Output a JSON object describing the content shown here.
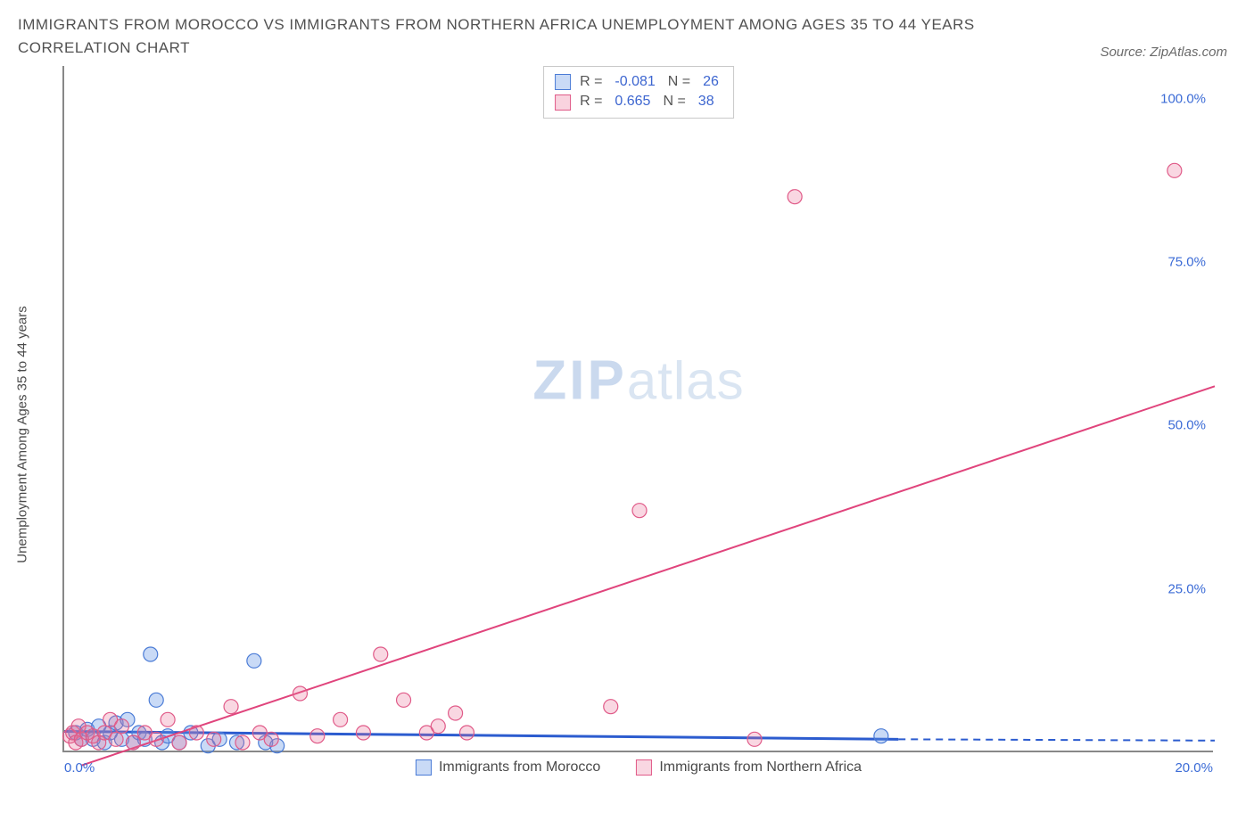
{
  "title_line1": "IMMIGRANTS FROM MOROCCO VS IMMIGRANTS FROM NORTHERN AFRICA UNEMPLOYMENT AMONG AGES 35 TO 44 YEARS",
  "title_line2": "CORRELATION CHART",
  "source": "Source: ZipAtlas.com",
  "ylabel": "Unemployment Among Ages 35 to 44 years",
  "watermark_zip": "ZIP",
  "watermark_atlas": "atlas",
  "chart": {
    "type": "scatter",
    "xlim": [
      0,
      20
    ],
    "ylim": [
      0,
      105
    ],
    "yticks": [
      {
        "v": 25,
        "label": "25.0%"
      },
      {
        "v": 50,
        "label": "50.0%"
      },
      {
        "v": 75,
        "label": "75.0%"
      },
      {
        "v": 100,
        "label": "100.0%"
      }
    ],
    "xticks": [
      {
        "v": 0,
        "label": "0.0%",
        "cls": "left"
      },
      {
        "v": 20,
        "label": "20.0%",
        "cls": "right"
      }
    ],
    "series": [
      {
        "name": "Immigrants from Morocco",
        "color_fill": "rgba(100,150,230,0.35)",
        "color_stroke": "#4a7bd6",
        "marker_radius": 8,
        "R": "-0.081",
        "N": "26",
        "trend": {
          "x1": 0,
          "y1": 3.2,
          "x2": 14.5,
          "y2": 2.0,
          "dashed_after_x": 14.5,
          "dash_to_x": 20,
          "dash_y": 1.8,
          "color": "#2c5ccf",
          "width": 3
        },
        "points": [
          [
            0.2,
            3
          ],
          [
            0.3,
            2
          ],
          [
            0.4,
            3.5
          ],
          [
            0.5,
            2
          ],
          [
            0.6,
            4
          ],
          [
            0.7,
            1.5
          ],
          [
            0.8,
            3
          ],
          [
            0.9,
            4.5
          ],
          [
            1.0,
            2
          ],
          [
            1.1,
            5
          ],
          [
            1.2,
            1.5
          ],
          [
            1.3,
            3
          ],
          [
            1.4,
            2
          ],
          [
            1.5,
            15
          ],
          [
            1.6,
            8
          ],
          [
            1.7,
            1.5
          ],
          [
            1.8,
            2.5
          ],
          [
            2.0,
            1.5
          ],
          [
            2.2,
            3
          ],
          [
            2.5,
            1
          ],
          [
            2.7,
            2
          ],
          [
            3.0,
            1.5
          ],
          [
            3.3,
            14
          ],
          [
            3.5,
            1.5
          ],
          [
            3.7,
            1
          ],
          [
            14.2,
            2.5
          ]
        ]
      },
      {
        "name": "Immigrants from Northern Africa",
        "color_fill": "rgba(235,110,150,0.28)",
        "color_stroke": "#e05a88",
        "marker_radius": 8,
        "R": "0.665",
        "N": "38",
        "trend": {
          "x1": 0.3,
          "y1": -2,
          "x2": 20,
          "y2": 56,
          "color": "#e0447c",
          "width": 2
        },
        "points": [
          [
            0.1,
            2.5
          ],
          [
            0.15,
            3
          ],
          [
            0.2,
            1.5
          ],
          [
            0.25,
            4
          ],
          [
            0.3,
            2
          ],
          [
            0.4,
            3
          ],
          [
            0.5,
            2.5
          ],
          [
            0.6,
            1.5
          ],
          [
            0.7,
            3
          ],
          [
            0.8,
            5
          ],
          [
            0.9,
            2
          ],
          [
            1.0,
            4
          ],
          [
            1.2,
            1.5
          ],
          [
            1.4,
            3
          ],
          [
            1.6,
            2
          ],
          [
            1.8,
            5
          ],
          [
            2.0,
            1.5
          ],
          [
            2.3,
            3
          ],
          [
            2.6,
            2
          ],
          [
            2.9,
            7
          ],
          [
            3.1,
            1.5
          ],
          [
            3.4,
            3
          ],
          [
            3.6,
            2
          ],
          [
            4.1,
            9
          ],
          [
            4.4,
            2.5
          ],
          [
            4.8,
            5
          ],
          [
            5.2,
            3
          ],
          [
            5.5,
            15
          ],
          [
            5.9,
            8
          ],
          [
            6.3,
            3
          ],
          [
            6.5,
            4
          ],
          [
            6.8,
            6
          ],
          [
            7.0,
            3
          ],
          [
            9.5,
            7
          ],
          [
            10.0,
            37
          ],
          [
            12.0,
            2
          ],
          [
            12.7,
            85
          ],
          [
            19.3,
            89
          ]
        ]
      }
    ]
  },
  "rbox": {
    "Rlabel": "R =",
    "Nlabel": "N ="
  },
  "bottom_legend": [
    {
      "label": "Immigrants from Morocco",
      "fill": "rgba(100,150,230,0.35)",
      "stroke": "#4a7bd6"
    },
    {
      "label": "Immigrants from Northern Africa",
      "fill": "rgba(235,110,150,0.28)",
      "stroke": "#e05a88"
    }
  ]
}
